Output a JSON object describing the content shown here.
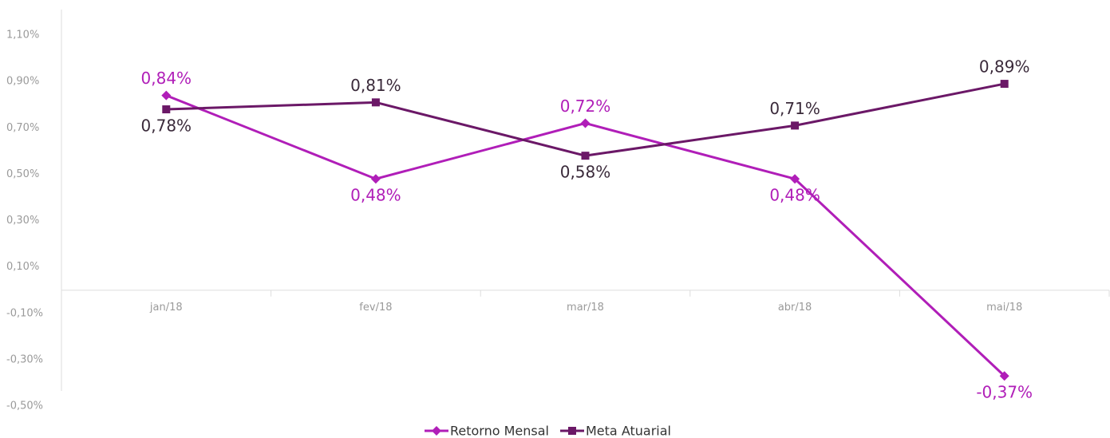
{
  "chart_data": {
    "type": "line",
    "categories": [
      "jan/18",
      "fev/18",
      "mar/18",
      "abr/18",
      "mai/18"
    ],
    "series": [
      {
        "name": "Retorno Mensal",
        "color": "#b01eb8",
        "marker": "diamond",
        "values": [
          0.84,
          0.48,
          0.72,
          0.48,
          -0.37
        ],
        "value_labels": [
          "0,84%",
          "0,48%",
          "0,72%",
          "0,48%",
          "-0,37%"
        ]
      },
      {
        "name": "Meta Atuarial",
        "color": "#6b1867",
        "marker": "square",
        "values": [
          0.78,
          0.81,
          0.58,
          0.71,
          0.89
        ],
        "value_labels": [
          "0,78%",
          "0,81%",
          "0,58%",
          "0,71%",
          "0,89%"
        ]
      }
    ],
    "ylim": [
      -0.5,
      1.2
    ],
    "yticks": [
      {
        "value": 1.1,
        "label": "1,10%"
      },
      {
        "value": 0.9,
        "label": "0,90%"
      },
      {
        "value": 0.7,
        "label": "0,70%"
      },
      {
        "value": 0.5,
        "label": "0,50%"
      },
      {
        "value": 0.3,
        "label": "0,30%"
      },
      {
        "value": 0.1,
        "label": "0,10%"
      },
      {
        "value": -0.1,
        "label": "-0,10%"
      },
      {
        "value": -0.3,
        "label": "-0,30%"
      },
      {
        "value": -0.5,
        "label": "-0,50%"
      }
    ],
    "grid": false,
    "legend": "bottom"
  }
}
